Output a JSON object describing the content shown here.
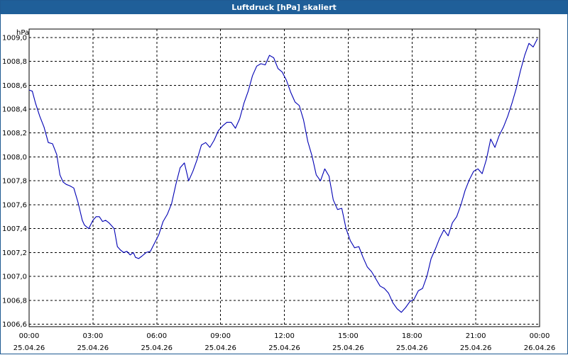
{
  "window": {
    "title": "Luftdruck [hPa] skaliert"
  },
  "chart_data": {
    "type": "line",
    "title": "Luftdruck [hPa] skaliert",
    "ylabel": "hPa",
    "xlabel": "",
    "grid": true,
    "ylim": [
      1006.58,
      1009.07
    ],
    "xlim": [
      0,
      24
    ],
    "y_ticks": [
      "1006,6",
      "1006,8",
      "1007,0",
      "1007,2",
      "1007,4",
      "1007,6",
      "1007,8",
      "1008,0",
      "1008,2",
      "1008,4",
      "1008,6",
      "1008,8",
      "1009,0"
    ],
    "y_tick_values": [
      1006.6,
      1006.8,
      1007.0,
      1007.2,
      1007.4,
      1007.6,
      1007.8,
      1008.0,
      1008.2,
      1008.4,
      1008.6,
      1008.8,
      1009.0
    ],
    "x_ticks": [
      {
        "time": "00:00",
        "date": "25.04.26",
        "hour": 0
      },
      {
        "time": "03:00",
        "date": "25.04.26",
        "hour": 3
      },
      {
        "time": "06:00",
        "date": "25.04.26",
        "hour": 6
      },
      {
        "time": "09:00",
        "date": "25.04.26",
        "hour": 9
      },
      {
        "time": "12:00",
        "date": "25.04.26",
        "hour": 12
      },
      {
        "time": "15:00",
        "date": "25.04.26",
        "hour": 15
      },
      {
        "time": "18:00",
        "date": "25.04.26",
        "hour": 18
      },
      {
        "time": "21:00",
        "date": "25.04.26",
        "hour": 21
      },
      {
        "time": "00:00",
        "date": "26.04.26",
        "hour": 24
      }
    ],
    "series": [
      {
        "name": "Luftdruck",
        "color": "#0000b4",
        "x": [
          0.0,
          0.15,
          0.3,
          0.5,
          0.7,
          0.9,
          1.1,
          1.3,
          1.45,
          1.6,
          1.75,
          1.9,
          2.1,
          2.3,
          2.5,
          2.6,
          2.8,
          3.0,
          3.15,
          3.3,
          3.45,
          3.6,
          3.75,
          3.9,
          4.0,
          4.15,
          4.3,
          4.45,
          4.6,
          4.75,
          4.9,
          5.0,
          5.15,
          5.3,
          5.5,
          5.7,
          5.9,
          6.1,
          6.3,
          6.5,
          6.7,
          6.9,
          7.1,
          7.3,
          7.5,
          7.7,
          7.9,
          8.1,
          8.3,
          8.5,
          8.7,
          8.9,
          9.1,
          9.3,
          9.5,
          9.7,
          9.9,
          10.1,
          10.3,
          10.5,
          10.7,
          10.9,
          11.1,
          11.3,
          11.5,
          11.7,
          11.9,
          12.1,
          12.3,
          12.5,
          12.7,
          12.9,
          13.1,
          13.3,
          13.5,
          13.7,
          13.9,
          14.1,
          14.3,
          14.5,
          14.7,
          14.9,
          15.1,
          15.3,
          15.5,
          15.7,
          15.9,
          16.1,
          16.3,
          16.5,
          16.7,
          16.9,
          17.1,
          17.3,
          17.5,
          17.7,
          17.9,
          18.1,
          18.3,
          18.5,
          18.7,
          18.9,
          19.1,
          19.3,
          19.5,
          19.7,
          19.9,
          20.1,
          20.3,
          20.5,
          20.7,
          20.9,
          21.1,
          21.3,
          21.5,
          21.7,
          21.9,
          22.1,
          22.3,
          22.5,
          22.7,
          22.9,
          23.1,
          23.3,
          23.5,
          23.7,
          23.9
        ],
        "values": [
          1008.56,
          1008.55,
          1008.45,
          1008.34,
          1008.25,
          1008.12,
          1008.11,
          1008.02,
          1007.85,
          1007.79,
          1007.77,
          1007.76,
          1007.74,
          1007.62,
          1007.47,
          1007.43,
          1007.4,
          1007.47,
          1007.5,
          1007.5,
          1007.46,
          1007.47,
          1007.45,
          1007.42,
          1007.4,
          1007.25,
          1007.22,
          1007.2,
          1007.21,
          1007.18,
          1007.2,
          1007.16,
          1007.15,
          1007.17,
          1007.2,
          1007.21,
          1007.28,
          1007.35,
          1007.46,
          1007.52,
          1007.61,
          1007.77,
          1007.91,
          1007.95,
          1007.8,
          1007.88,
          1007.98,
          1008.1,
          1008.12,
          1008.08,
          1008.14,
          1008.22,
          1008.26,
          1008.29,
          1008.29,
          1008.24,
          1008.32,
          1008.45,
          1008.55,
          1008.68,
          1008.76,
          1008.78,
          1008.77,
          1008.85,
          1008.83,
          1008.74,
          1008.71,
          1008.64,
          1008.54,
          1008.46,
          1008.43,
          1008.31,
          1008.13,
          1008.01,
          1007.85,
          1007.8,
          1007.9,
          1007.84,
          1007.64,
          1007.56,
          1007.57,
          1007.4,
          1007.3,
          1007.24,
          1007.25,
          1007.16,
          1007.08,
          1007.04,
          1006.98,
          1006.92,
          1006.9,
          1006.86,
          1006.78,
          1006.73,
          1006.7,
          1006.74,
          1006.79,
          1006.81,
          1006.88,
          1006.9,
          1007.0,
          1007.15,
          1007.23,
          1007.32,
          1007.39,
          1007.34,
          1007.45,
          1007.5,
          1007.6,
          1007.72,
          1007.81,
          1007.88,
          1007.9,
          1007.86,
          1007.98,
          1008.15,
          1008.08,
          1008.18,
          1008.25,
          1008.34,
          1008.45,
          1008.57,
          1008.72,
          1008.85,
          1008.95,
          1008.92,
          1008.99
        ]
      }
    ]
  }
}
